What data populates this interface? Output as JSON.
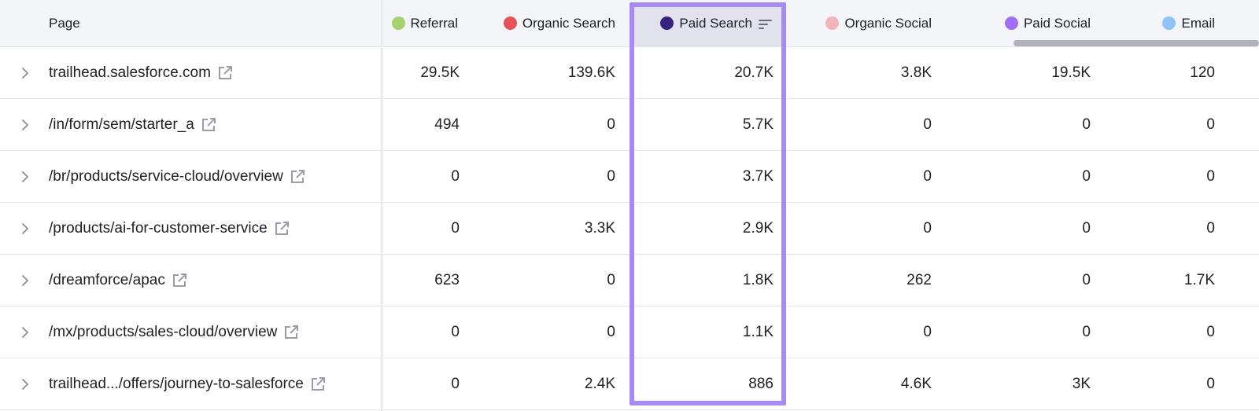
{
  "table": {
    "page_header": "Page",
    "columns": [
      {
        "label": "Referral",
        "color": "#a4d26e"
      },
      {
        "label": "Organic Search",
        "color": "#e8515a"
      },
      {
        "label": "Paid Search",
        "color": "#36237f"
      },
      {
        "label": "Organic Social",
        "color": "#f3b3b9"
      },
      {
        "label": "Paid Social",
        "color": "#a16ef7"
      },
      {
        "label": "Email",
        "color": "#8ec4f7"
      }
    ],
    "sorted_column": "Paid Search",
    "rows": [
      {
        "page": "trailhead.salesforce.com",
        "values": [
          "29.5K",
          "139.6K",
          "20.7K",
          "3.8K",
          "19.5K",
          "120"
        ]
      },
      {
        "page": "/in/form/sem/starter_a",
        "values": [
          "494",
          "0",
          "5.7K",
          "0",
          "0",
          "0"
        ]
      },
      {
        "page": "/br/products/service-cloud/overview",
        "values": [
          "0",
          "0",
          "3.7K",
          "0",
          "0",
          "0"
        ]
      },
      {
        "page": "/products/ai-for-customer-service",
        "values": [
          "0",
          "3.3K",
          "2.9K",
          "0",
          "0",
          "0"
        ]
      },
      {
        "page": "/dreamforce/apac",
        "values": [
          "623",
          "0",
          "1.8K",
          "262",
          "0",
          "1.7K"
        ]
      },
      {
        "page": "/mx/products/sales-cloud/overview",
        "values": [
          "0",
          "0",
          "1.1K",
          "0",
          "0",
          "0"
        ]
      },
      {
        "page": "trailhead.../offers/journey-to-salesforce",
        "values": [
          "0",
          "2.4K",
          "886",
          "4.6K",
          "3K",
          "0"
        ]
      }
    ]
  },
  "icons": {
    "expand": "chevron-right-icon",
    "external_link": "external-link-icon",
    "sort": "sort-descending-icon"
  },
  "colors": {
    "highlight_border": "#a98af2",
    "header_background": "#f4f5f9",
    "sorted_header_background": "#e1e2ec"
  }
}
